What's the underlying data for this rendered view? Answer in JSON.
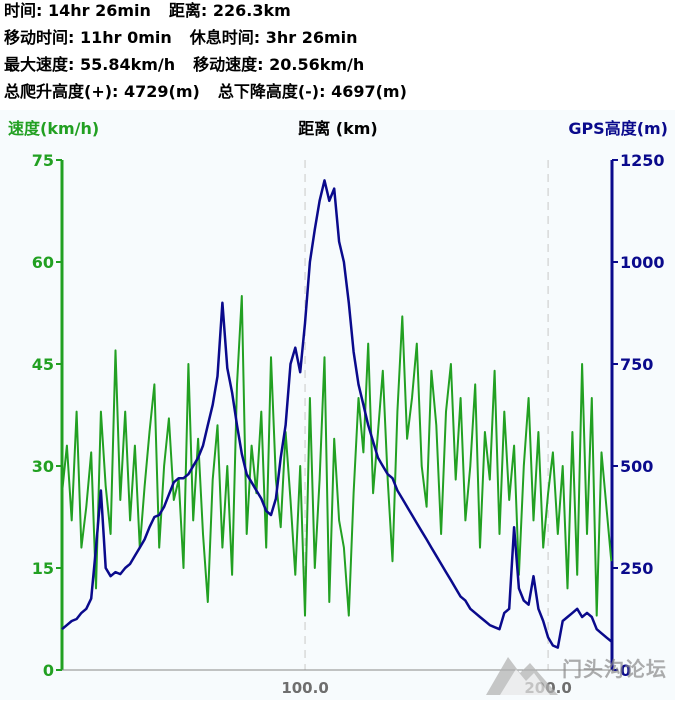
{
  "stats": {
    "time": "时间: 14hr 26min",
    "distance": "距离: 226.3km",
    "moving_time": "移动时间: 11hr 0min",
    "rest_time": "休息时间: 3hr 26min",
    "max_speed": "最大速度: 55.84km/h",
    "moving_speed": "移动速度: 20.56km/h",
    "total_ascent": "总爬升高度(+): 4729(m)",
    "total_descent": "总下降高度(-): 4697(m)"
  },
  "watermark": {
    "text": "门头沟论坛"
  },
  "colors": {
    "speed": "#22a022",
    "elevation": "#0a0a8c",
    "gridline": "#c8c8c8",
    "background": "#f7fbfd"
  },
  "chart_data": {
    "type": "line",
    "xlabel": "距离 (km)",
    "x_tick_labels": [
      "100.0",
      "200.0"
    ],
    "x_range": [
      0,
      226.3
    ],
    "x_ticks": [
      100,
      200
    ],
    "grid": "vertical dashed at x ticks",
    "y_left": {
      "label": "速度(km/h)",
      "range": [
        0,
        75
      ],
      "ticks": [
        "0",
        "15",
        "30",
        "45",
        "60",
        "75"
      ]
    },
    "y_right": {
      "label": "GPS高度(m)",
      "range": [
        0,
        1250
      ],
      "ticks": [
        "0",
        "250",
        "500",
        "750",
        "1000",
        "1250"
      ]
    },
    "series": [
      {
        "axis": "left",
        "x": [
          0,
          2,
          4,
          6,
          8,
          10,
          12,
          14,
          16,
          18,
          20,
          22,
          24,
          26,
          28,
          30,
          32,
          34,
          36,
          38,
          40,
          42,
          44,
          46,
          48,
          50,
          52,
          54,
          56,
          58,
          60,
          62,
          64,
          66,
          68,
          70,
          72,
          74,
          76,
          78,
          80,
          82,
          84,
          86,
          88,
          90,
          92,
          94,
          96,
          98,
          100,
          102,
          104,
          106,
          108,
          110,
          112,
          114,
          116,
          118,
          120,
          122,
          124,
          126,
          128,
          130,
          132,
          134,
          136,
          138,
          140,
          142,
          144,
          146,
          148,
          150,
          152,
          154,
          156,
          158,
          160,
          162,
          164,
          166,
          168,
          170,
          172,
          174,
          176,
          178,
          180,
          182,
          184,
          186,
          188,
          190,
          192,
          194,
          196,
          198,
          200,
          202,
          204,
          206,
          208,
          210,
          212,
          214,
          216,
          218,
          220,
          222,
          224,
          226
        ],
        "values": [
          26,
          33,
          22,
          38,
          18,
          24,
          32,
          12,
          38,
          27,
          20,
          47,
          25,
          38,
          22,
          33,
          18,
          27,
          35,
          42,
          18,
          30,
          37,
          25,
          28,
          15,
          45,
          22,
          34,
          20,
          10,
          28,
          36,
          18,
          30,
          14,
          42,
          55,
          20,
          33,
          26,
          38,
          18,
          46,
          28,
          21,
          35,
          25,
          14,
          30,
          8,
          40,
          15,
          28,
          46,
          10,
          34,
          22,
          18,
          8,
          26,
          40,
          32,
          48,
          26,
          35,
          44,
          28,
          16,
          38,
          52,
          34,
          40,
          48,
          30,
          24,
          44,
          36,
          20,
          38,
          45,
          28,
          40,
          22,
          30,
          42,
          18,
          35,
          28,
          44,
          20,
          38,
          25,
          33,
          14,
          30,
          40,
          22,
          35,
          18,
          26,
          32,
          20,
          30,
          12,
          35,
          14,
          45,
          20,
          40,
          8,
          32,
          24,
          16
        ]
      },
      {
        "axis": "right",
        "x": [
          0,
          2,
          4,
          6,
          8,
          10,
          12,
          14,
          16,
          18,
          20,
          22,
          24,
          26,
          28,
          30,
          32,
          34,
          36,
          38,
          40,
          42,
          44,
          46,
          48,
          50,
          52,
          54,
          56,
          58,
          60,
          62,
          64,
          66,
          68,
          70,
          72,
          74,
          76,
          78,
          80,
          82,
          84,
          86,
          88,
          90,
          92,
          94,
          96,
          98,
          100,
          102,
          104,
          106,
          108,
          110,
          112,
          114,
          116,
          118,
          120,
          122,
          124,
          126,
          128,
          130,
          132,
          134,
          136,
          138,
          140,
          142,
          144,
          146,
          148,
          150,
          152,
          154,
          156,
          158,
          160,
          162,
          164,
          166,
          168,
          170,
          172,
          174,
          176,
          178,
          180,
          182,
          184,
          186,
          188,
          190,
          192,
          194,
          196,
          198,
          200,
          202,
          204,
          206,
          208,
          210,
          212,
          214,
          216,
          218,
          220,
          222,
          224,
          226
        ],
        "values": [
          100,
          110,
          120,
          125,
          140,
          150,
          175,
          300,
          440,
          250,
          230,
          240,
          235,
          250,
          260,
          280,
          300,
          320,
          350,
          375,
          380,
          400,
          430,
          460,
          470,
          470,
          480,
          500,
          520,
          550,
          600,
          650,
          720,
          900,
          740,
          680,
          600,
          530,
          480,
          460,
          440,
          420,
          390,
          380,
          420,
          520,
          600,
          750,
          790,
          730,
          850,
          1000,
          1080,
          1150,
          1200,
          1150,
          1180,
          1050,
          1000,
          900,
          780,
          700,
          650,
          600,
          560,
          520,
          500,
          480,
          470,
          440,
          420,
          400,
          380,
          360,
          340,
          320,
          300,
          280,
          260,
          240,
          220,
          200,
          180,
          170,
          150,
          140,
          130,
          120,
          110,
          105,
          100,
          140,
          150,
          350,
          200,
          170,
          160,
          230,
          150,
          120,
          80,
          60,
          55,
          120,
          130,
          140,
          150,
          130,
          140,
          130,
          100,
          90,
          80,
          70
        ]
      }
    ]
  }
}
